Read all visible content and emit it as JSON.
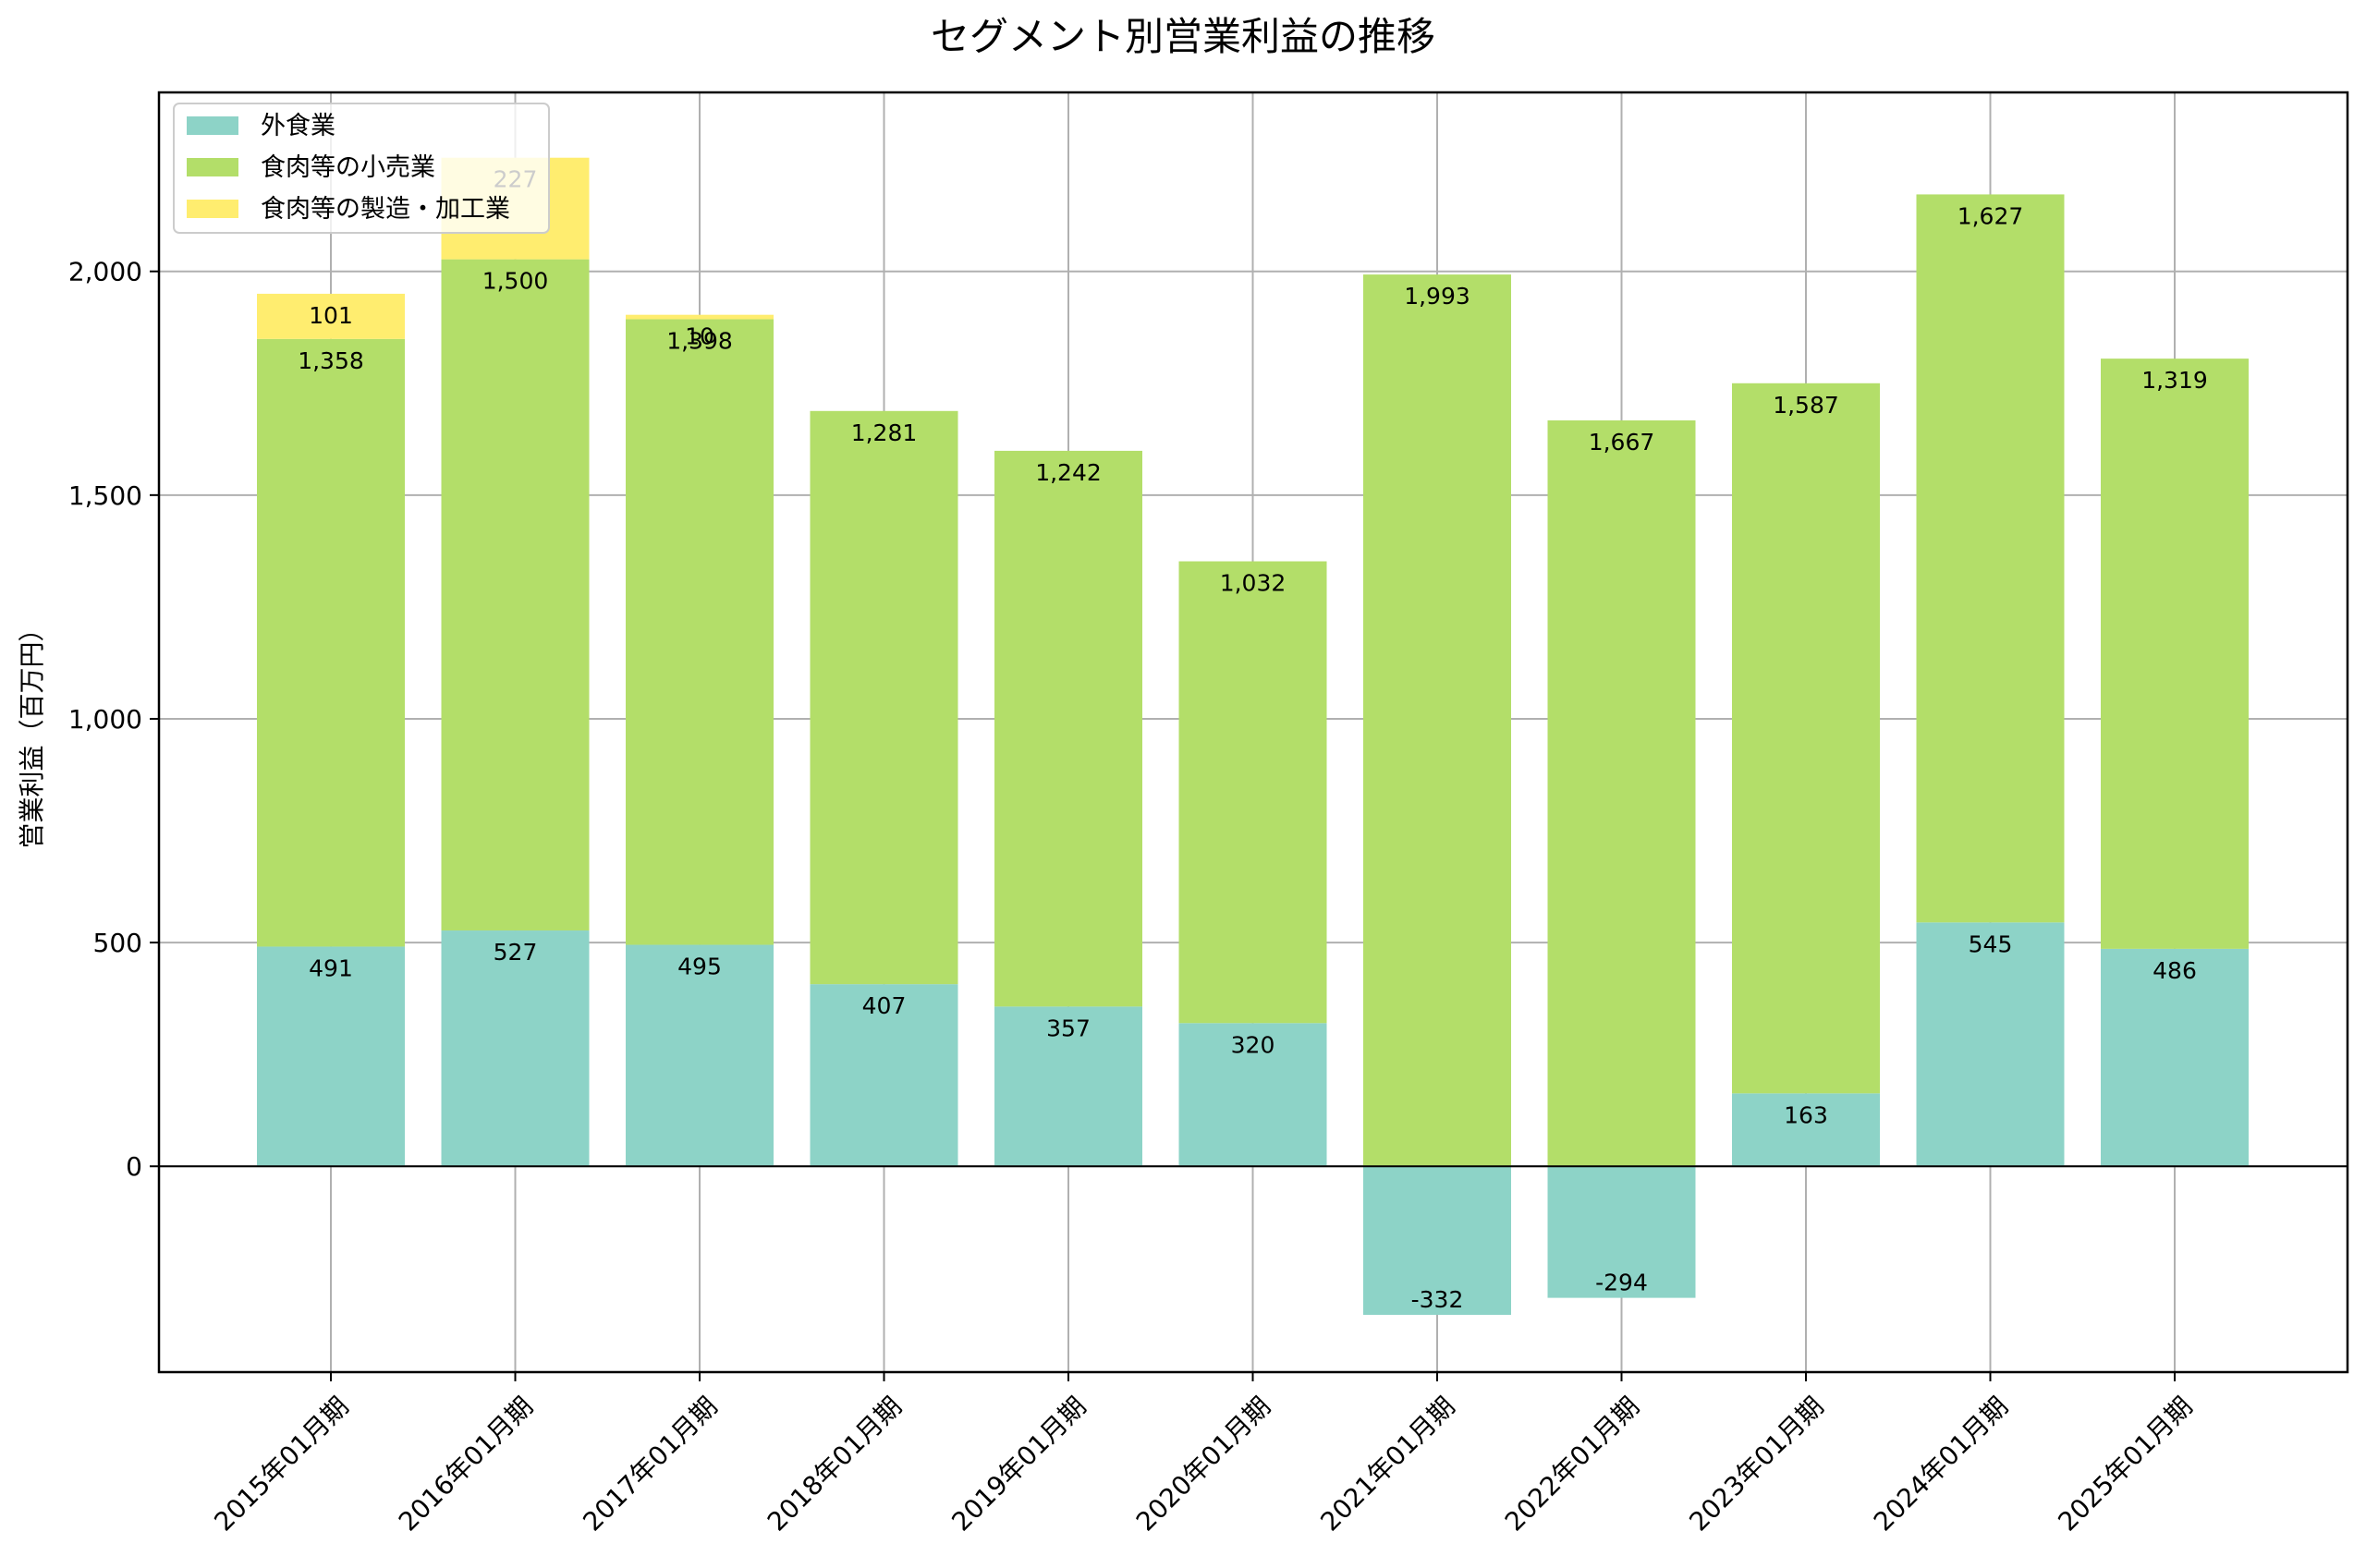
{
  "chart_data": {
    "type": "bar",
    "stacked": true,
    "title": "セグメント別営業利益の推移",
    "xlabel": "",
    "ylabel": "営業利益（百万円）",
    "ylim": [
      -460,
      2400
    ],
    "yticks": [
      0,
      500,
      1000,
      1500,
      2000
    ],
    "ytick_labels": [
      "0",
      "500",
      "1,000",
      "1,500",
      "2,000"
    ],
    "grid": true,
    "legend_position": "top-left",
    "categories": [
      "2015年01月期",
      "2016年01月期",
      "2017年01月期",
      "2018年01月期",
      "2019年01月期",
      "2020年01月期",
      "2021年01月期",
      "2022年01月期",
      "2023年01月期",
      "2024年01月期",
      "2025年01月期"
    ],
    "series": [
      {
        "name": "外食業",
        "color": "#8dd3c7",
        "values": [
          491,
          527,
          495,
          407,
          357,
          320,
          -332,
          -294,
          163,
          545,
          486
        ],
        "labels": [
          "491",
          "527",
          "495",
          "407",
          "357",
          "320",
          "-332",
          "-294",
          "163",
          "545",
          "486"
        ]
      },
      {
        "name": "食肉等の小売業",
        "color": "#b3de69",
        "values": [
          1358,
          1500,
          1398,
          1281,
          1242,
          1032,
          1993,
          1667,
          1587,
          1627,
          1319
        ],
        "labels": [
          "1,358",
          "1,500",
          "1,398",
          "1,281",
          "1,242",
          "1,032",
          "1,993",
          "1,667",
          "1,587",
          "1,627",
          "1,319"
        ]
      },
      {
        "name": "食肉等の製造・加工業",
        "color": "#ffed6f",
        "values": [
          101,
          227,
          10,
          null,
          null,
          null,
          null,
          null,
          null,
          null,
          null
        ],
        "labels": [
          "101",
          "227",
          "10",
          null,
          null,
          null,
          null,
          null,
          null,
          null,
          null
        ]
      }
    ]
  }
}
